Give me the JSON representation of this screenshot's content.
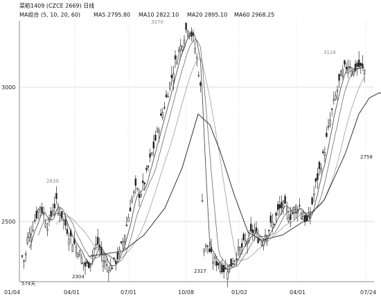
{
  "header": {
    "title": "菜粕1409 (CZCE 2669) 日线",
    "ma_label": "MA组合 (5, 10, 20, 60)",
    "ma5": "MA5 2795.80",
    "ma10": "MA10 2822.10",
    "ma20": "MA20 2895.10",
    "ma60": "MA60 2968.25"
  },
  "colors": {
    "background": "#ffffff",
    "candle": "#222222",
    "ma": "#444444",
    "grid": "#dddddd",
    "note_gray": "#8a8a8a"
  },
  "chart_data": {
    "type": "candlestick",
    "y_ticks": [
      2500,
      3000
    ],
    "y_tick_labels": [
      "2500",
      "3000"
    ],
    "ylim": [
      2250,
      3280
    ],
    "x_tick_labels": [
      "01/04",
      "04/01",
      "07/01",
      "10/08",
      "01/02",
      "04/01",
      "07/24"
    ],
    "grid": true,
    "annotations": [
      {
        "text": "3270",
        "value": 3270,
        "color": "gray"
      },
      {
        "text": "2639",
        "value": 2639,
        "color": "gray"
      },
      {
        "text": "3118",
        "value": 3118,
        "color": "gray"
      },
      {
        "text": "2304",
        "value": 2304,
        "color": "dark"
      },
      {
        "text": "2327",
        "value": 2327,
        "color": "dark"
      },
      {
        "text": "2758",
        "value": 2758,
        "color": "dark"
      },
      {
        "text": "574天",
        "value": null,
        "color": "dark"
      }
    ],
    "close_path": [
      [
        0,
        2380
      ],
      [
        6,
        2350
      ],
      [
        10,
        2440
      ],
      [
        16,
        2470
      ],
      [
        22,
        2520
      ],
      [
        28,
        2560
      ],
      [
        34,
        2520
      ],
      [
        40,
        2480
      ],
      [
        46,
        2550
      ],
      [
        52,
        2570
      ],
      [
        58,
        2530
      ],
      [
        64,
        2490
      ],
      [
        70,
        2450
      ],
      [
        76,
        2420
      ],
      [
        82,
        2400
      ],
      [
        88,
        2360
      ],
      [
        94,
        2330
      ],
      [
        100,
        2350
      ],
      [
        106,
        2400
      ],
      [
        112,
        2420
      ],
      [
        118,
        2360
      ],
      [
        124,
        2340
      ],
      [
        130,
        2330
      ],
      [
        136,
        2350
      ],
      [
        142,
        2380
      ],
      [
        148,
        2430
      ],
      [
        154,
        2500
      ],
      [
        160,
        2580
      ],
      [
        166,
        2620
      ],
      [
        172,
        2600
      ],
      [
        178,
        2640
      ],
      [
        184,
        2700
      ],
      [
        190,
        2760
      ],
      [
        196,
        2820
      ],
      [
        202,
        2880
      ],
      [
        208,
        2940
      ],
      [
        214,
        3000
      ],
      [
        220,
        3060
      ],
      [
        226,
        3120
      ],
      [
        232,
        3160
      ],
      [
        238,
        3210
      ],
      [
        242,
        3230
      ],
      [
        246,
        3200
      ],
      [
        250,
        3170
      ],
      [
        256,
        3080
      ],
      [
        260,
        2980
      ],
      [
        263,
        2400
      ],
      [
        270,
        2410
      ],
      [
        276,
        2360
      ],
      [
        282,
        2350
      ],
      [
        288,
        2340
      ],
      [
        294,
        2320
      ],
      [
        300,
        2330
      ],
      [
        306,
        2350
      ],
      [
        312,
        2380
      ],
      [
        318,
        2400
      ],
      [
        324,
        2420
      ],
      [
        330,
        2440
      ],
      [
        336,
        2470
      ],
      [
        342,
        2440
      ],
      [
        348,
        2430
      ],
      [
        354,
        2460
      ],
      [
        360,
        2480
      ],
      [
        366,
        2500
      ],
      [
        372,
        2540
      ],
      [
        378,
        2560
      ],
      [
        384,
        2540
      ],
      [
        390,
        2520
      ],
      [
        396,
        2550
      ],
      [
        402,
        2560
      ],
      [
        408,
        2520
      ],
      [
        414,
        2490
      ],
      [
        420,
        2560
      ],
      [
        426,
        2640
      ],
      [
        432,
        2700
      ],
      [
        438,
        2760
      ],
      [
        444,
        2840
      ],
      [
        450,
        2920
      ],
      [
        456,
        2980
      ],
      [
        462,
        3040
      ],
      [
        468,
        3070
      ],
      [
        474,
        3090
      ],
      [
        480,
        3060
      ],
      [
        486,
        3080
      ],
      [
        492,
        3070
      ],
      [
        498,
        3060
      ],
      [
        504,
        3030
      ],
      [
        510,
        2960
      ],
      [
        516,
        2900
      ],
      [
        522,
        2850
      ],
      [
        528,
        2790
      ]
    ],
    "ma_bull_path": [
      [
        100,
        2370
      ],
      [
        150,
        2390
      ],
      [
        180,
        2450
      ],
      [
        210,
        2550
      ],
      [
        235,
        2700
      ],
      [
        258,
        2900
      ],
      [
        275,
        2860
      ],
      [
        290,
        2760
      ],
      [
        310,
        2600
      ],
      [
        330,
        2460
      ],
      [
        350,
        2430
      ],
      [
        380,
        2450
      ],
      [
        410,
        2500
      ],
      [
        440,
        2580
      ],
      [
        470,
        2750
      ],
      [
        490,
        2900
      ],
      [
        505,
        2960
      ],
      [
        520,
        2980
      ],
      [
        532,
        2960
      ]
    ]
  }
}
